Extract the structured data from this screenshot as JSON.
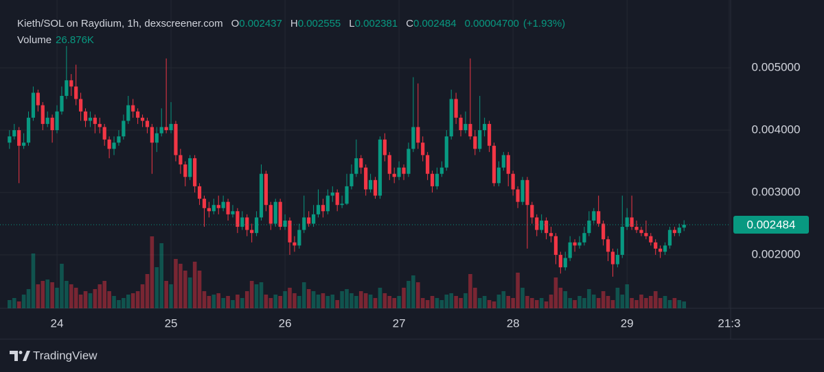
{
  "chart_data": {
    "type": "candlestick",
    "title": "Kieth/SOL on Raydium, 1h, dexscreener.com",
    "ohlc_letters": [
      "O",
      "H",
      "L",
      "C"
    ],
    "change_label": "0.00004700",
    "change_pct_label": "(+1.93%)",
    "brand": "TradingView",
    "up_color": "#089981",
    "down_color": "#f23645",
    "grid": true,
    "xlim": [
      -12,
      141.8
    ],
    "xticks": [
      {
        "value": 0,
        "label": "24"
      },
      {
        "value": 24,
        "label": "25"
      },
      {
        "value": 48,
        "label": "26"
      },
      {
        "value": 72,
        "label": "27"
      },
      {
        "value": 96,
        "label": "28"
      },
      {
        "value": 120,
        "label": "29"
      },
      {
        "value": 141.5,
        "label": "21:3"
      }
    ],
    "ylim": [
      0.001143,
      0.006088
    ],
    "yticks": [
      {
        "value": 0.002,
        "label": "0.002000"
      },
      {
        "value": 0.003,
        "label": "0.003000"
      },
      {
        "value": 0.004,
        "label": "0.004000"
      },
      {
        "value": 0.005,
        "label": "0.005000"
      }
    ],
    "x": [
      -10,
      -9,
      -8,
      -7,
      -6,
      -5,
      -4,
      -3,
      -2,
      -1,
      0,
      1,
      2,
      3,
      4,
      5,
      6,
      7,
      8,
      9,
      10,
      11,
      12,
      13,
      14,
      15,
      16,
      17,
      18,
      19,
      20,
      21,
      22,
      23,
      24,
      25,
      26,
      27,
      28,
      29,
      30,
      31,
      32,
      33,
      34,
      35,
      36,
      37,
      38,
      39,
      40,
      41,
      42,
      43,
      44,
      45,
      46,
      47,
      48,
      49,
      50,
      51,
      52,
      53,
      54,
      55,
      56,
      57,
      58,
      59,
      60,
      61,
      62,
      63,
      64,
      65,
      66,
      67,
      68,
      69,
      70,
      71,
      72,
      73,
      74,
      75,
      76,
      77,
      78,
      79,
      80,
      81,
      82,
      83,
      84,
      85,
      86,
      87,
      88,
      89,
      90,
      91,
      92,
      93,
      94,
      95,
      96,
      97,
      98,
      99,
      100,
      101,
      102,
      103,
      104,
      105,
      106,
      107,
      108,
      109,
      110,
      111,
      112,
      113,
      114,
      115,
      116,
      117,
      118,
      119,
      120,
      121,
      122,
      123,
      124,
      125,
      126,
      127,
      128,
      129,
      130,
      131,
      132
    ],
    "open": [
      0.0038,
      0.0039,
      0.004,
      0.00375,
      0.0038,
      0.0042,
      0.0046,
      0.0044,
      0.0041,
      0.0042,
      0.004,
      0.0043,
      0.00455,
      0.0048,
      0.0047,
      0.0045,
      0.0043,
      0.00415,
      0.0042,
      0.0041,
      0.00405,
      0.00385,
      0.0037,
      0.0038,
      0.0039,
      0.00415,
      0.0044,
      0.0043,
      0.0042,
      0.00415,
      0.00405,
      0.0038,
      0.00395,
      0.00405,
      0.004,
      0.0041,
      0.0036,
      0.00345,
      0.00325,
      0.00355,
      0.0031,
      0.0029,
      0.00275,
      0.0027,
      0.0028,
      0.00275,
      0.00285,
      0.00265,
      0.0027,
      0.00245,
      0.0026,
      0.0024,
      0.00235,
      0.0026,
      0.0033,
      0.0028,
      0.0025,
      0.00285,
      0.00245,
      0.00255,
      0.0022,
      0.00215,
      0.0024,
      0.0026,
      0.0025,
      0.00265,
      0.0028,
      0.0027,
      0.00295,
      0.003,
      0.0028,
      0.00282,
      0.0031,
      0.0033,
      0.00355,
      0.0034,
      0.00305,
      0.0032,
      0.00295,
      0.00385,
      0.0036,
      0.0033,
      0.00325,
      0.0034,
      0.0033,
      0.0037,
      0.00405,
      0.0038,
      0.0036,
      0.0033,
      0.0031,
      0.0033,
      0.0034,
      0.0039,
      0.0045,
      0.0042,
      0.004,
      0.0041,
      0.0039,
      0.0037,
      0.004,
      0.0041,
      0.00375,
      0.00315,
      0.0034,
      0.0036,
      0.0033,
      0.00305,
      0.00285,
      0.0032,
      0.0028,
      0.0026,
      0.0024,
      0.00255,
      0.00235,
      0.0023,
      0.002,
      0.0018,
      0.00195,
      0.0022,
      0.00215,
      0.0022,
      0.00235,
      0.00255,
      0.0027,
      0.0025,
      0.00225,
      0.00205,
      0.00185,
      0.002,
      0.00245,
      0.0026,
      0.00245,
      0.0024,
      0.00235,
      0.0023,
      0.0022,
      0.0021,
      0.00205,
      0.00215,
      0.0024,
      0.00235,
      0.002437
    ],
    "high": [
      0.004,
      0.0041,
      0.00405,
      0.00395,
      0.0043,
      0.0047,
      0.00465,
      0.00445,
      0.0043,
      0.00425,
      0.0044,
      0.0047,
      0.00535,
      0.0049,
      0.00505,
      0.0046,
      0.00435,
      0.0043,
      0.00425,
      0.0042,
      0.0041,
      0.0039,
      0.0039,
      0.004,
      0.00425,
      0.00455,
      0.0045,
      0.00435,
      0.00425,
      0.0042,
      0.0041,
      0.00405,
      0.00435,
      0.00515,
      0.00445,
      0.00415,
      0.0037,
      0.0035,
      0.0036,
      0.0036,
      0.00315,
      0.00295,
      0.00285,
      0.0029,
      0.00295,
      0.00295,
      0.0029,
      0.0028,
      0.00275,
      0.0027,
      0.00265,
      0.0025,
      0.0027,
      0.00345,
      0.00335,
      0.00285,
      0.0029,
      0.0029,
      0.00265,
      0.0026,
      0.0023,
      0.0025,
      0.00295,
      0.0027,
      0.0028,
      0.00305,
      0.0029,
      0.00305,
      0.0031,
      0.00305,
      0.00295,
      0.0033,
      0.00345,
      0.00385,
      0.0036,
      0.00345,
      0.0033,
      0.00325,
      0.0039,
      0.00395,
      0.00365,
      0.0034,
      0.0035,
      0.00345,
      0.0038,
      0.00485,
      0.00475,
      0.0039,
      0.00365,
      0.00335,
      0.0034,
      0.0035,
      0.004,
      0.00465,
      0.0046,
      0.00425,
      0.0043,
      0.00515,
      0.004,
      0.00455,
      0.0042,
      0.00415,
      0.0038,
      0.0035,
      0.00365,
      0.00365,
      0.00335,
      0.0031,
      0.00325,
      0.00325,
      0.00285,
      0.00265,
      0.00265,
      0.0026,
      0.00245,
      0.00235,
      0.00205,
      0.00205,
      0.0023,
      0.00225,
      0.0023,
      0.00245,
      0.0027,
      0.00275,
      0.00295,
      0.00255,
      0.0023,
      0.0021,
      0.0021,
      0.00295,
      0.00275,
      0.00295,
      0.00255,
      0.00245,
      0.00255,
      0.00235,
      0.00225,
      0.00215,
      0.0022,
      0.00245,
      0.00245,
      0.0025,
      0.002555
    ],
    "low": [
      0.0037,
      0.00385,
      0.00315,
      0.0037,
      0.00375,
      0.00415,
      0.0043,
      0.004,
      0.00405,
      0.0038,
      0.00395,
      0.00425,
      0.0045,
      0.00455,
      0.0044,
      0.00415,
      0.00405,
      0.00405,
      0.00395,
      0.00395,
      0.00375,
      0.00355,
      0.0036,
      0.00375,
      0.00385,
      0.0041,
      0.0042,
      0.0041,
      0.00405,
      0.00395,
      0.0033,
      0.00365,
      0.0039,
      0.00395,
      0.00395,
      0.0035,
      0.0033,
      0.0031,
      0.0032,
      0.003,
      0.0028,
      0.00245,
      0.0026,
      0.00265,
      0.00265,
      0.0027,
      0.00255,
      0.0026,
      0.00235,
      0.0024,
      0.0023,
      0.0022,
      0.0023,
      0.00255,
      0.0027,
      0.0024,
      0.00245,
      0.0024,
      0.0024,
      0.002,
      0.00205,
      0.0021,
      0.00235,
      0.00245,
      0.00245,
      0.0026,
      0.0026,
      0.00265,
      0.00285,
      0.0027,
      0.00275,
      0.0028,
      0.00305,
      0.00325,
      0.0033,
      0.00295,
      0.003,
      0.0029,
      0.0029,
      0.0035,
      0.0032,
      0.00315,
      0.0032,
      0.0032,
      0.00325,
      0.00365,
      0.0037,
      0.0035,
      0.0032,
      0.003,
      0.00305,
      0.00325,
      0.00335,
      0.00385,
      0.0041,
      0.0039,
      0.00395,
      0.00385,
      0.0036,
      0.00365,
      0.0039,
      0.00365,
      0.0031,
      0.0031,
      0.00335,
      0.0031,
      0.00295,
      0.00275,
      0.0028,
      0.0021,
      0.0025,
      0.0023,
      0.00235,
      0.00225,
      0.0022,
      0.00185,
      0.0017,
      0.00175,
      0.0019,
      0.00205,
      0.0021,
      0.00215,
      0.0023,
      0.0025,
      0.00245,
      0.00215,
      0.0019,
      0.00165,
      0.0018,
      0.00195,
      0.0024,
      0.0024,
      0.00235,
      0.0023,
      0.00225,
      0.00215,
      0.002,
      0.00195,
      0.002,
      0.0021,
      0.0023,
      0.0023,
      0.002381
    ],
    "close": [
      0.0039,
      0.004,
      0.00375,
      0.0038,
      0.0042,
      0.0046,
      0.0044,
      0.0041,
      0.0042,
      0.004,
      0.0043,
      0.00455,
      0.0048,
      0.0047,
      0.0045,
      0.0043,
      0.00415,
      0.0042,
      0.0041,
      0.00405,
      0.00385,
      0.0037,
      0.0038,
      0.0039,
      0.00415,
      0.0044,
      0.0043,
      0.0042,
      0.00415,
      0.00405,
      0.0038,
      0.00395,
      0.00405,
      0.004,
      0.0041,
      0.0036,
      0.00345,
      0.00325,
      0.00355,
      0.0031,
      0.0029,
      0.00275,
      0.0027,
      0.0028,
      0.00275,
      0.00285,
      0.00265,
      0.0027,
      0.00245,
      0.0026,
      0.0024,
      0.00235,
      0.0026,
      0.0033,
      0.0028,
      0.0025,
      0.00285,
      0.00245,
      0.00255,
      0.0022,
      0.00215,
      0.0024,
      0.0026,
      0.0025,
      0.00265,
      0.0028,
      0.0027,
      0.00295,
      0.003,
      0.0028,
      0.00282,
      0.0031,
      0.0033,
      0.00355,
      0.0034,
      0.00305,
      0.0032,
      0.00295,
      0.00385,
      0.0036,
      0.0033,
      0.00325,
      0.0034,
      0.0033,
      0.0037,
      0.00405,
      0.0038,
      0.0036,
      0.0033,
      0.0031,
      0.0033,
      0.0034,
      0.0039,
      0.0045,
      0.0042,
      0.004,
      0.0041,
      0.0039,
      0.0037,
      0.004,
      0.0041,
      0.00375,
      0.00315,
      0.0034,
      0.0036,
      0.0033,
      0.00305,
      0.00285,
      0.0032,
      0.0028,
      0.0026,
      0.0024,
      0.00255,
      0.00235,
      0.0023,
      0.002,
      0.0018,
      0.00195,
      0.0022,
      0.00215,
      0.0022,
      0.00235,
      0.00255,
      0.0027,
      0.0025,
      0.00225,
      0.00205,
      0.00185,
      0.002,
      0.00245,
      0.0026,
      0.00245,
      0.0024,
      0.00235,
      0.0023,
      0.0022,
      0.0021,
      0.00205,
      0.00215,
      0.0024,
      0.00235,
      0.002437,
      0.002484
    ],
    "volume": {
      "name": "Volume",
      "last_label": "26.876K",
      "values": [
        32400,
        40500,
        27000,
        54000,
        75600,
        216000,
        94500,
        108000,
        113400,
        102600,
        81000,
        175500,
        108000,
        94500,
        81000,
        54000,
        67500,
        59400,
        75600,
        94500,
        108000,
        67500,
        48600,
        32400,
        40500,
        54000,
        59400,
        67500,
        94500,
        135000,
        283500,
        162000,
        256500,
        108000,
        94500,
        194400,
        175500,
        148500,
        121500,
        183600,
        148500,
        67500,
        48600,
        54000,
        59400,
        40500,
        48600,
        32400,
        54000,
        40500,
        67500,
        108000,
        94500,
        102600,
        54000,
        40500,
        54000,
        48600,
        67500,
        81000,
        59400,
        48600,
        102600,
        75600,
        67500,
        54000,
        59400,
        48600,
        54000,
        32400,
        67500,
        75600,
        59400,
        48600,
        67500,
        59400,
        54000,
        40500,
        81000,
        59400,
        48600,
        40500,
        48600,
        81000,
        108000,
        129600,
        102600,
        40500,
        32400,
        48600,
        40500,
        32400,
        54000,
        59400,
        48600,
        40500,
        59400,
        135000,
        81000,
        40500,
        48600,
        32400,
        27000,
        54000,
        67500,
        48600,
        40500,
        140400,
        81000,
        48600,
        40500,
        32400,
        40500,
        27000,
        54000,
        121500,
        81000,
        67500,
        40500,
        32400,
        48600,
        40500,
        75600,
        54000,
        40500,
        67500,
        48600,
        32400,
        81000,
        54000,
        94500,
        40500,
        32400,
        54000,
        40500,
        48600,
        67500,
        40500,
        48600,
        32400,
        40500,
        32400,
        26876
      ]
    }
  }
}
